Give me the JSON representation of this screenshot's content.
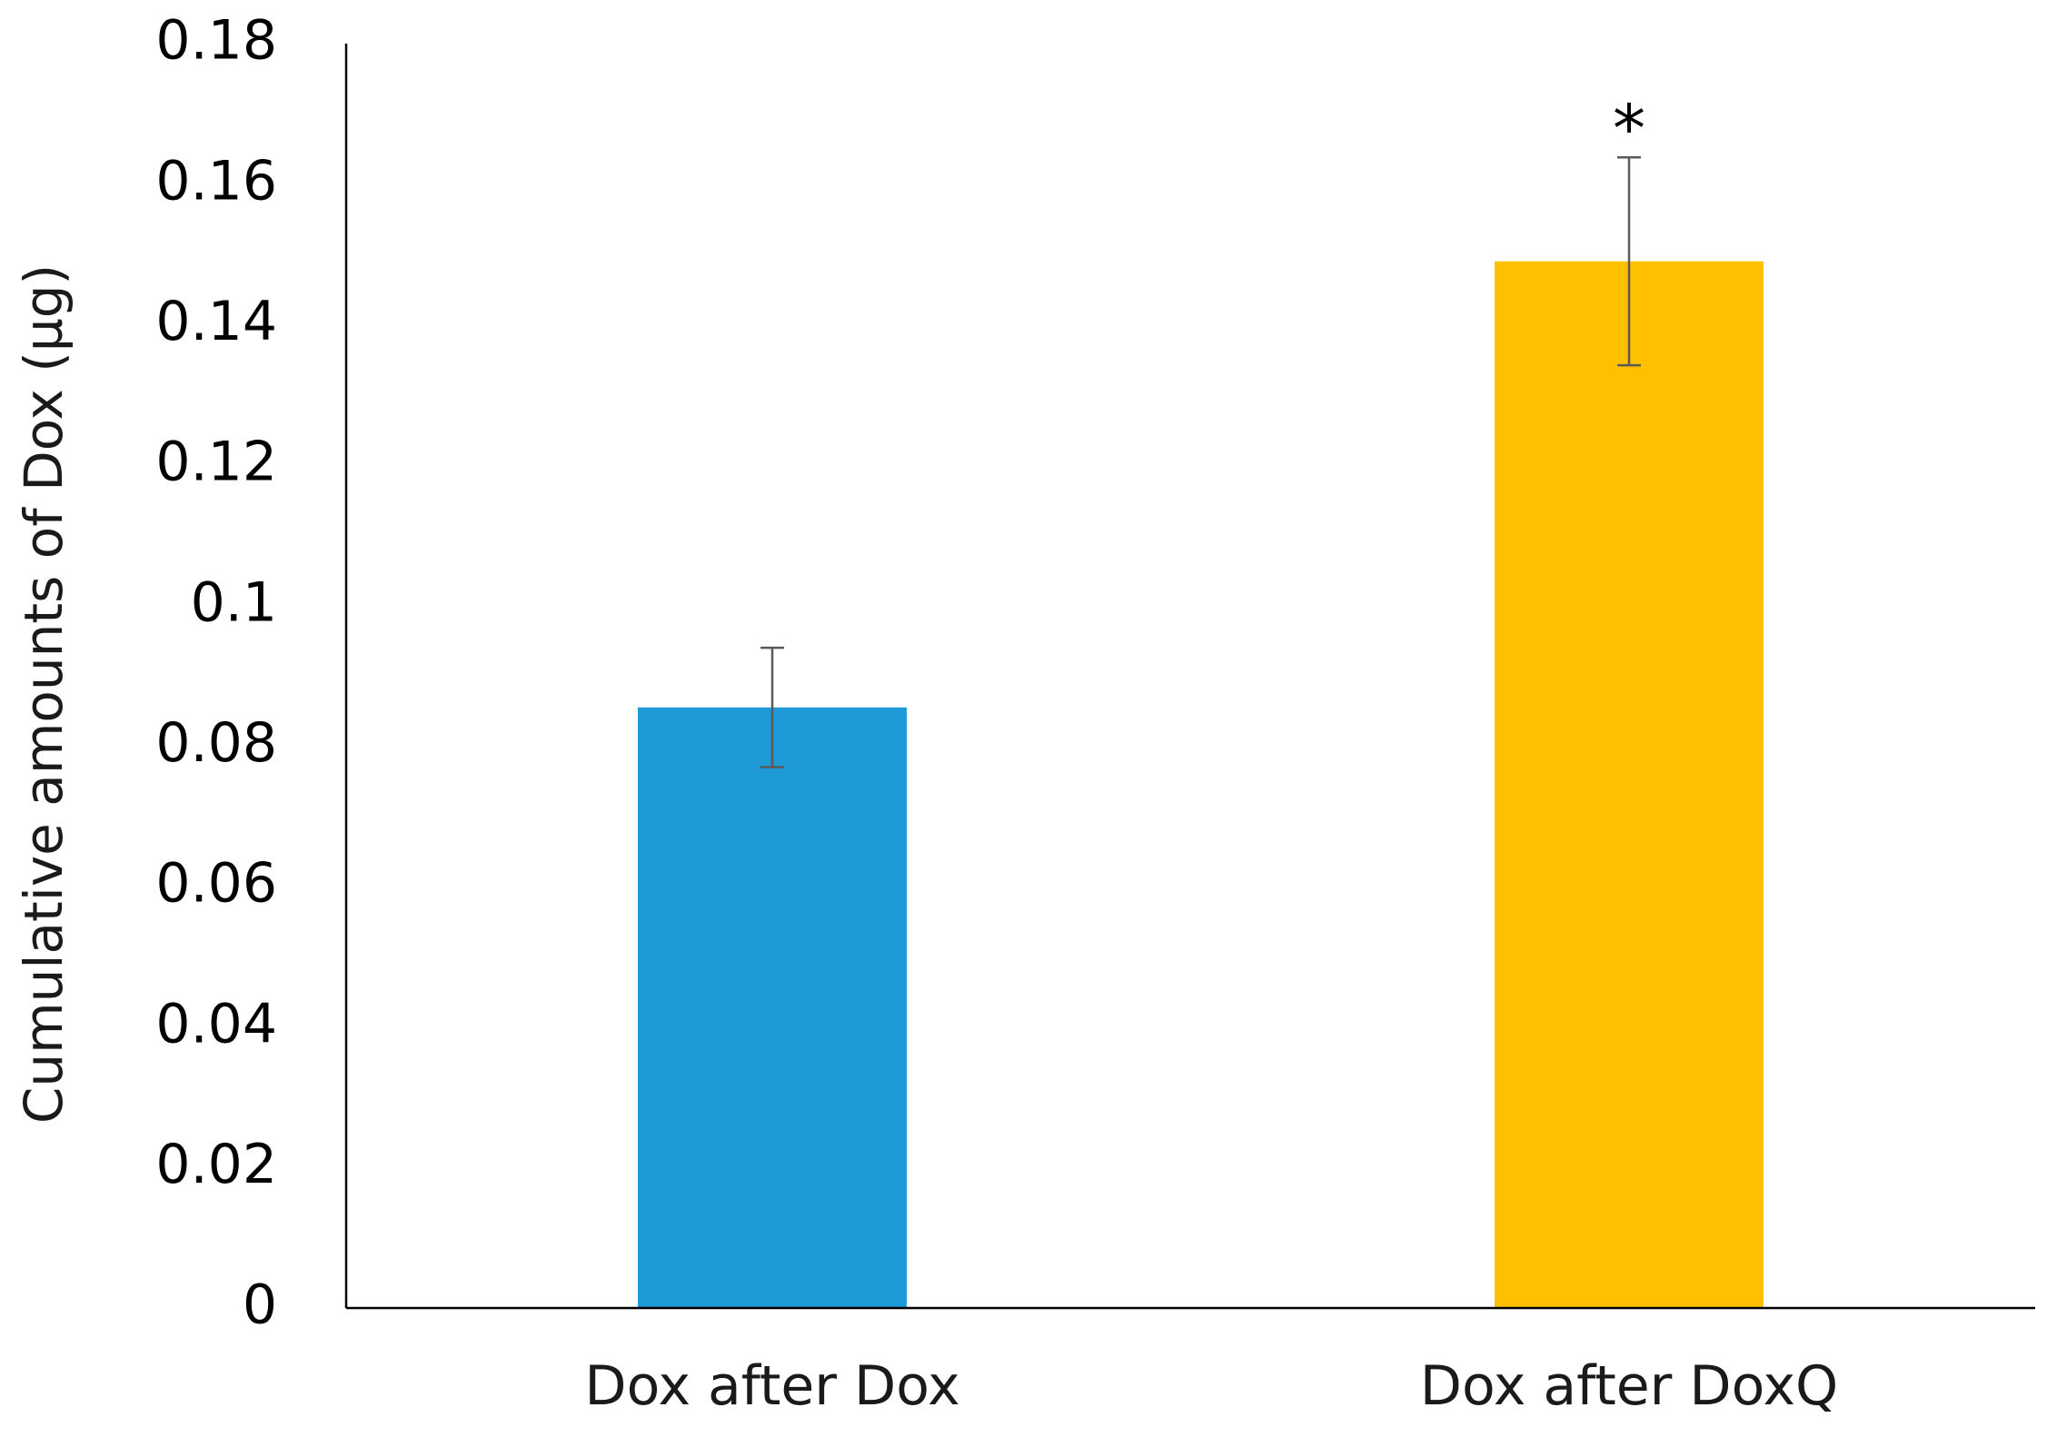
{
  "chart_data": {
    "type": "bar",
    "ylabel": "Cumulative amounts of Dox (µg)",
    "xlabel": "",
    "ylim": [
      0,
      0.18
    ],
    "yticks": [
      0,
      0.02,
      0.04,
      0.06,
      0.08,
      0.1,
      0.12,
      0.14,
      0.16,
      0.18
    ],
    "ytick_labels": [
      "0",
      "0.02",
      "0.04",
      "0.06",
      "0.08",
      "0.1",
      "0.12",
      "0.14",
      "0.16",
      "0.18"
    ],
    "grid": false,
    "legend": "none",
    "categories": [
      "Dox after Dox",
      "Dox after DoxQ"
    ],
    "values": [
      0.0855,
      0.149
    ],
    "errors": [
      0.0085,
      0.0148
    ],
    "colors": [
      "#1e9bd7",
      "#ffc000"
    ],
    "error_bar_color": "#5a5a5a",
    "axis_color": "#000000",
    "annotations": [
      {
        "category_index": 1,
        "text": "*"
      }
    ]
  }
}
